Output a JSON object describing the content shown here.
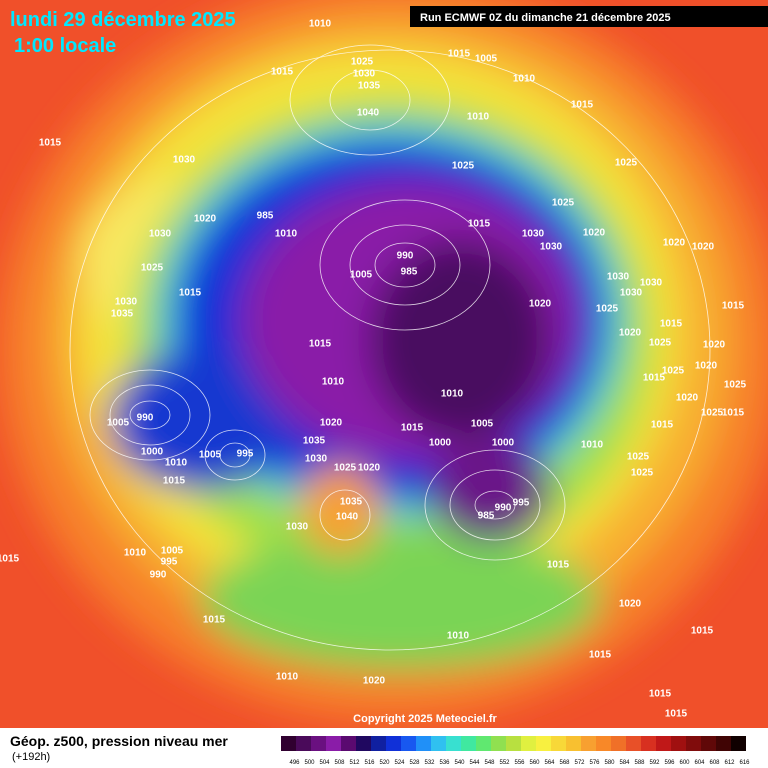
{
  "header": {
    "date": "lundi 29 décembre 2025",
    "time": "1:00 locale"
  },
  "run": "Run ECMWF 0Z du dimanche 21 décembre 2025",
  "copyright": "Copyright 2025 Meteociel.fr",
  "legend": {
    "title": "Géop. z500, pression niveau mer",
    "lead": "(+192h)",
    "scale": [
      496,
      500,
      504,
      508,
      512,
      516,
      520,
      524,
      528,
      532,
      536,
      540,
      544,
      548,
      552,
      556,
      560,
      564,
      568,
      572,
      576,
      580,
      584,
      588,
      592,
      596,
      600,
      604,
      608,
      612,
      616
    ]
  },
  "map": {
    "isobar_labels": [
      1010,
      1015,
      1025,
      1030,
      1035,
      1040,
      1015,
      1005,
      1010,
      1010,
      1015,
      1015,
      1030,
      1025,
      1025,
      1025,
      1020,
      985,
      1030,
      1010,
      1015,
      1030,
      1030,
      1020,
      1020,
      1020,
      990,
      985,
      1005,
      1025,
      1030,
      1030,
      1030,
      1030,
      1035,
      1015,
      1020,
      1025,
      1015,
      1015,
      1015,
      1020,
      1025,
      1020,
      1010,
      1015,
      1025,
      1020,
      1025,
      1010,
      1020,
      990,
      1005,
      1015,
      1005,
      1020,
      1015,
      1025,
      1015,
      1000,
      1000,
      1010,
      1035,
      1000,
      1005,
      995,
      1030,
      1010,
      1025,
      1020,
      1025,
      1025,
      1015,
      995,
      990,
      985,
      1035,
      1040,
      1030,
      1015,
      1010,
      1005,
      995,
      990,
      1015,
      1020,
      1015,
      1010,
      1015,
      1015,
      1010,
      1020,
      1015,
      1015
    ]
  }
}
